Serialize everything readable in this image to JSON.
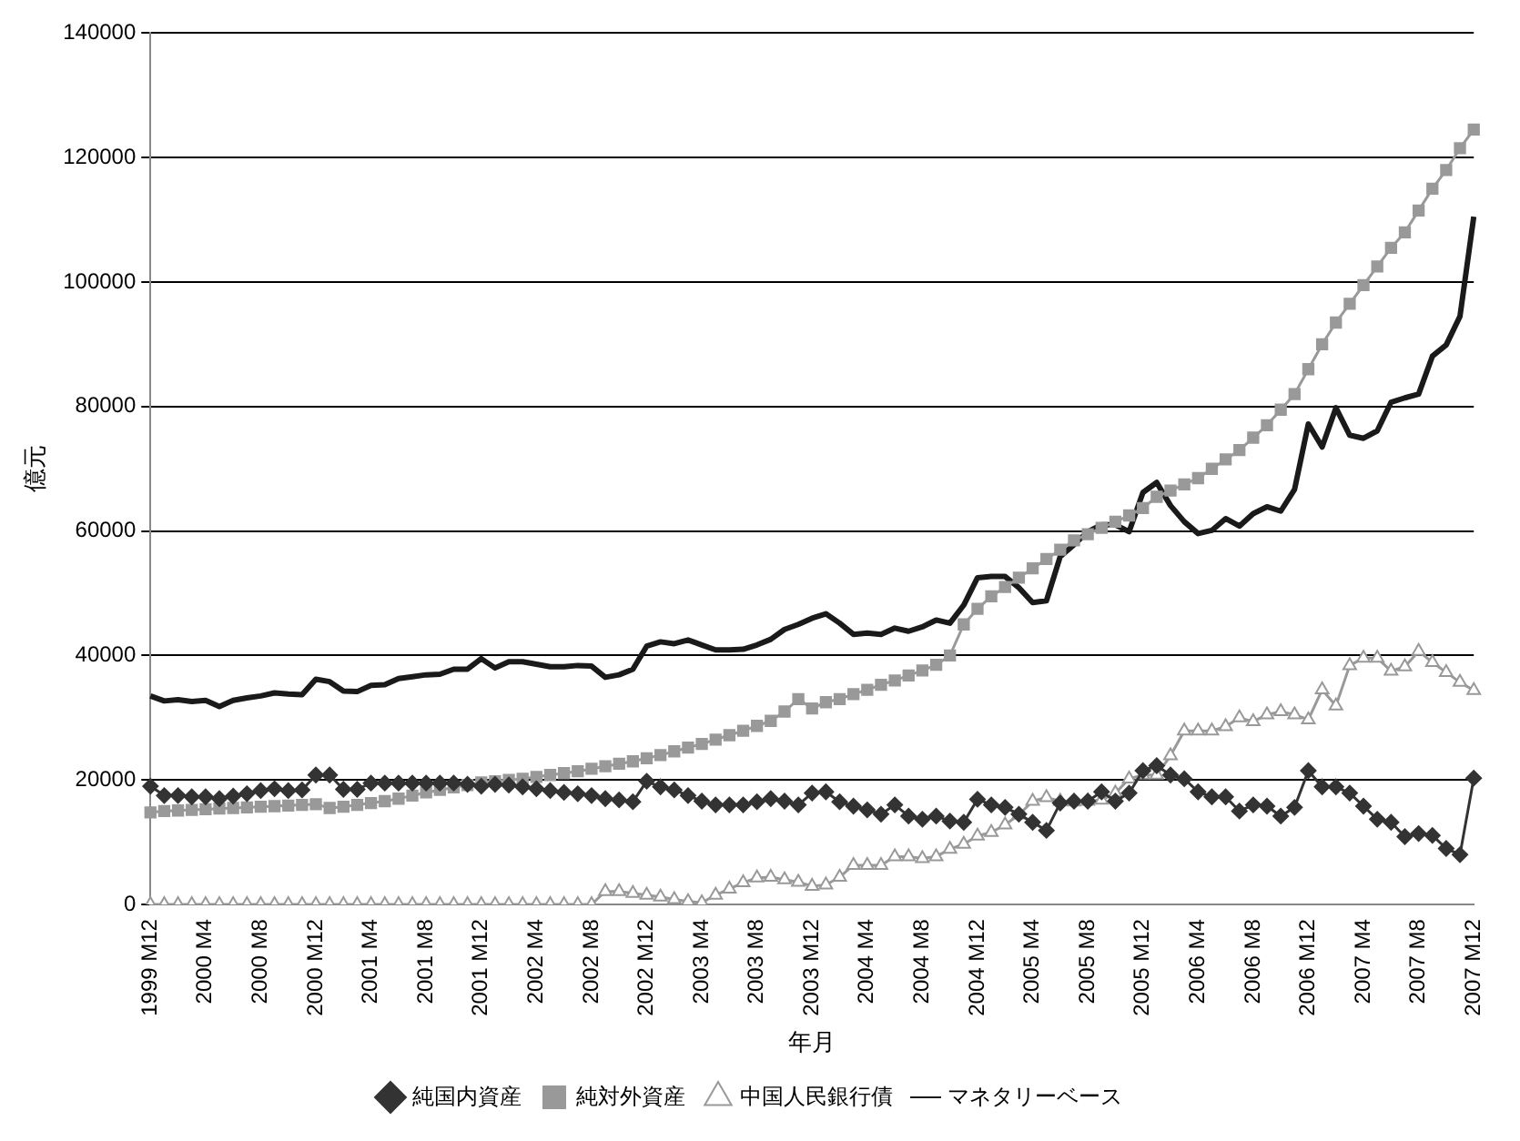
{
  "chart_data": {
    "type": "line",
    "ylabel": "億元",
    "xlabel": "年月",
    "categories": [
      "1999 M12",
      null,
      null,
      null,
      "2000 M4",
      null,
      null,
      null,
      "2000 M8",
      null,
      null,
      null,
      "2000 M12",
      null,
      null,
      null,
      "2001 M4",
      null,
      null,
      null,
      "2001 M8",
      null,
      null,
      null,
      "2001 M12",
      null,
      null,
      null,
      "2002 M4",
      null,
      null,
      null,
      "2002 M8",
      null,
      null,
      null,
      "2002 M12",
      null,
      null,
      null,
      "2003 M4",
      null,
      null,
      null,
      "2003 M8",
      null,
      null,
      null,
      "2003 M12",
      null,
      null,
      null,
      "2004 M4",
      null,
      null,
      null,
      "2004 M8",
      null,
      null,
      null,
      "2004 M12",
      null,
      null,
      null,
      "2005 M4",
      null,
      null,
      null,
      "2005 M8",
      null,
      null,
      null,
      "2005 M12",
      null,
      null,
      null,
      "2006 M4",
      null,
      null,
      null,
      "2006 M8",
      null,
      null,
      null,
      "2006 M12",
      null,
      null,
      null,
      "2007 M4",
      null,
      null,
      null,
      "2007 M8",
      null,
      null,
      null,
      "2007 M12"
    ],
    "series": [
      {
        "name": "純国内資産",
        "color": "#333333",
        "marker": "diamond",
        "values": [
          19000,
          17500,
          17500,
          17300,
          17300,
          17000,
          17400,
          17800,
          18300,
          18600,
          18300,
          18400,
          20800,
          20800,
          18500,
          18500,
          19500,
          19500,
          19500,
          19500,
          19500,
          19500,
          19500,
          19300,
          19000,
          19300,
          19200,
          18900,
          18600,
          18300,
          18000,
          17800,
          17500,
          17000,
          16800,
          16500,
          19800,
          18900,
          18400,
          17500,
          16600,
          16000,
          16000,
          16000,
          16500,
          17000,
          16600,
          16000,
          17900,
          18100,
          16500,
          15800,
          15200,
          14500,
          16000,
          14200,
          13700,
          14200,
          13400,
          13200,
          16900,
          16000,
          15600,
          14500,
          13200,
          11900,
          16300,
          16600,
          16600,
          18100,
          16600,
          17900,
          21500,
          22300,
          20800,
          20200,
          18100,
          17300,
          17300,
          15000,
          16000,
          15800,
          14200,
          15600,
          21500,
          18900,
          18900,
          17900,
          15800,
          13700,
          13200,
          10900,
          11400,
          11100,
          9000,
          8000,
          20300
        ]
      },
      {
        "name": "純対外資産",
        "color": "#999999",
        "marker": "square",
        "values": [
          14800,
          15000,
          15100,
          15200,
          15300,
          15400,
          15500,
          15600,
          15700,
          15800,
          15900,
          16000,
          16100,
          15500,
          15700,
          16000,
          16300,
          16600,
          17000,
          17500,
          18000,
          18400,
          18800,
          19200,
          19600,
          19800,
          20000,
          20200,
          20500,
          20800,
          21100,
          21400,
          21800,
          22200,
          22600,
          23000,
          23500,
          24000,
          24600,
          25200,
          25800,
          26500,
          27200,
          27900,
          28700,
          29500,
          31000,
          33000,
          31500,
          32500,
          33000,
          33800,
          34500,
          35300,
          36000,
          36800,
          37600,
          38500,
          40000,
          45000,
          47500,
          49500,
          51000,
          52500,
          54000,
          55500,
          57000,
          58500,
          59500,
          60500,
          61500,
          62500,
          63700,
          65500,
          66500,
          67500,
          68500,
          70000,
          71500,
          73000,
          75000,
          77000,
          79500,
          82000,
          86000,
          90000,
          93500,
          96500,
          99500,
          102500,
          105500,
          108000,
          111500,
          115000,
          118000,
          121500,
          124500
        ]
      },
      {
        "name": "中国人民銀行債",
        "color": "#999999",
        "marker": "triangle",
        "values": [
          0,
          0,
          0,
          0,
          0,
          0,
          0,
          0,
          0,
          0,
          0,
          0,
          0,
          0,
          0,
          0,
          0,
          0,
          0,
          0,
          0,
          0,
          0,
          0,
          0,
          0,
          0,
          0,
          0,
          0,
          0,
          0,
          0,
          2100,
          2100,
          1800,
          1500,
          1200,
          800,
          500,
          300,
          1500,
          2500,
          3500,
          4300,
          4400,
          4000,
          3600,
          2950,
          3150,
          4400,
          6300,
          6300,
          6300,
          7700,
          7700,
          7400,
          7700,
          8900,
          9700,
          11000,
          11600,
          12800,
          14400,
          16600,
          17200,
          16600,
          16500,
          16600,
          16800,
          17900,
          20200,
          20800,
          20800,
          23900,
          27900,
          27900,
          27900,
          28600,
          30000,
          29400,
          30500,
          31000,
          30500,
          29700,
          34500,
          31900,
          38400,
          39600,
          39600,
          37500,
          38200,
          40700,
          38900,
          37300,
          35700,
          34400
        ]
      },
      {
        "name": "マネタリーベース",
        "color": "#1a1a1a",
        "marker": "none",
        "values": [
          33500,
          32700,
          32900,
          32600,
          32800,
          31800,
          32800,
          33200,
          33500,
          34000,
          33800,
          33700,
          36200,
          35800,
          34300,
          34200,
          35200,
          35300,
          36300,
          36600,
          36900,
          37000,
          37800,
          37800,
          39500,
          38000,
          39000,
          39000,
          38600,
          38200,
          38200,
          38400,
          38300,
          36500,
          36900,
          37800,
          41500,
          42200,
          41900,
          42500,
          41700,
          40900,
          40900,
          41000,
          41700,
          42600,
          44200,
          45000,
          46000,
          46700,
          45200,
          43400,
          43600,
          43400,
          44400,
          43900,
          44600,
          45700,
          45200,
          48100,
          52500,
          52700,
          52700,
          50900,
          48500,
          48800,
          55900,
          57800,
          59900,
          61000,
          61000,
          59900,
          66200,
          67800,
          64100,
          61500,
          59600,
          60100,
          62000,
          60800,
          62800,
          63900,
          63200,
          66700,
          77200,
          73500,
          79800,
          75400,
          74900,
          76100,
          80700,
          81400,
          82000,
          88100,
          89900,
          94500,
          110500
        ]
      }
    ],
    "ylim": [
      0,
      140000
    ],
    "yticks": [
      0,
      20000,
      40000,
      60000,
      80000,
      100000,
      120000,
      140000
    ],
    "grid": "y",
    "legend": "bottom"
  }
}
